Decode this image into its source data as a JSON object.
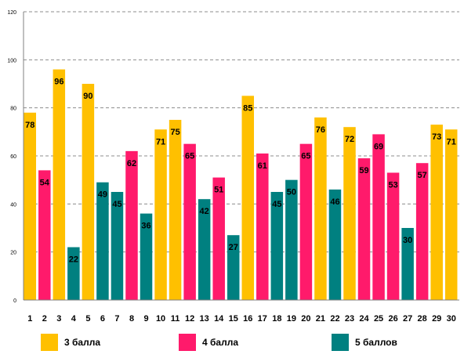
{
  "chart_data": {
    "type": "bar",
    "categories": [
      "1",
      "2",
      "3",
      "4",
      "5",
      "6",
      "7",
      "8",
      "9",
      "10",
      "11",
      "12",
      "13",
      "14",
      "15",
      "16",
      "17",
      "18",
      "19",
      "20",
      "21",
      "22",
      "23",
      "24",
      "25",
      "26",
      "27",
      "28",
      "29",
      "30"
    ],
    "values": [
      78,
      54,
      96,
      22,
      90,
      49,
      45,
      62,
      36,
      71,
      75,
      65,
      42,
      51,
      27,
      85,
      61,
      45,
      50,
      65,
      76,
      46,
      72,
      59,
      69,
      53,
      30,
      57,
      73,
      71
    ],
    "series_index": [
      0,
      1,
      0,
      2,
      0,
      2,
      2,
      1,
      2,
      0,
      0,
      1,
      2,
      1,
      2,
      0,
      1,
      2,
      2,
      1,
      0,
      2,
      0,
      1,
      1,
      1,
      2,
      1,
      0,
      0
    ],
    "series": [
      {
        "name": "3 балла",
        "color": "#FFC000"
      },
      {
        "name": "4 балла",
        "color": "#FF1A6B"
      },
      {
        "name": "5 баллов",
        "color": "#008080"
      }
    ],
    "ylim": [
      0,
      120
    ],
    "yticks": [
      "0",
      "20",
      "40",
      "60",
      "80",
      "100",
      "120"
    ],
    "grid": true,
    "legend_position": "bottom"
  }
}
